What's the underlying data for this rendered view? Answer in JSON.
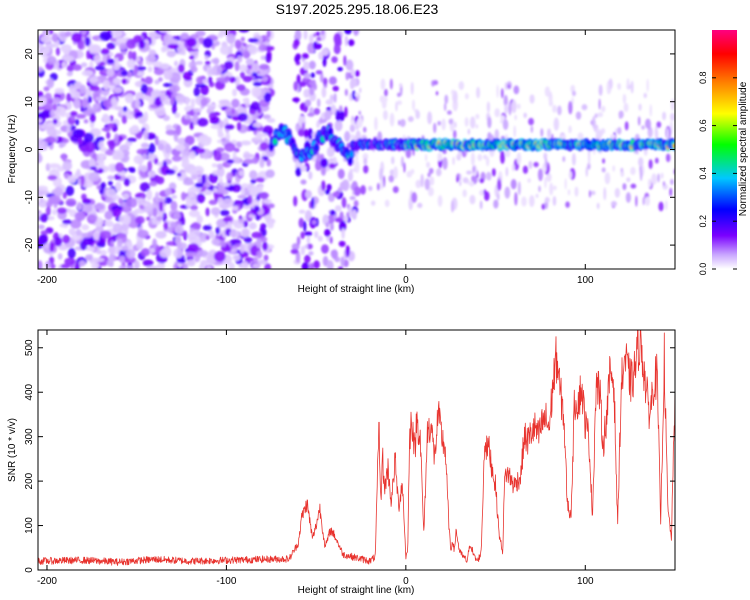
{
  "chart_data": [
    {
      "type": "heatmap",
      "title": "S197.2025.295.18.06.E23",
      "xlabel": "Height of straight line (km)",
      "ylabel": "Frequency (Hz)",
      "xlim": [
        -205,
        150
      ],
      "ylim": [
        -25,
        25
      ],
      "x_ticks": [
        -200,
        -100,
        0,
        100
      ],
      "y_ticks": [
        -20,
        -10,
        0,
        10,
        20
      ],
      "colorbar": {
        "label": "Normalized spectral amplitude",
        "range": [
          0,
          1
        ],
        "ticks": [
          "0.0",
          "0.2",
          "0.4",
          "0.6",
          "0.8"
        ],
        "colors": [
          "#ffffff",
          "#7a00ff",
          "#0000ff",
          "#00c8ff",
          "#00ff00",
          "#ffff00",
          "#ff8000",
          "#ff0000",
          "#ff0080"
        ]
      },
      "features": [
        {
          "name": "noise",
          "x_range": [
            -205,
            -75
          ],
          "freq_range": [
            -25,
            25
          ],
          "amplitude": 0.15
        },
        {
          "name": "narrow-band",
          "x_range": [
            -75,
            150
          ],
          "freq_center": 1,
          "amplitude_peak": 0.95
        }
      ]
    },
    {
      "type": "line",
      "xlabel": "Height of straight line (km)",
      "ylabel": "SNR (10 * v/v)",
      "xlim": [
        -205,
        150
      ],
      "ylim": [
        0,
        540
      ],
      "x_ticks": [
        -200,
        -100,
        0,
        100
      ],
      "y_ticks": [
        0,
        100,
        200,
        300,
        400,
        500
      ],
      "series": [
        {
          "name": "SNR",
          "color": "#e8332e",
          "x": [
            -205,
            -180,
            -160,
            -140,
            -120,
            -100,
            -80,
            -65,
            -60,
            -58,
            -55,
            -52,
            -50,
            -48,
            -45,
            -42,
            -40,
            -35,
            -30,
            -25,
            -20,
            -17,
            -16,
            -15,
            -14,
            -13,
            -12,
            -10,
            -8,
            -6,
            -4,
            -2,
            0,
            1,
            2,
            3,
            4,
            5,
            6,
            8,
            10,
            12,
            14,
            16,
            18,
            20,
            22,
            24,
            25,
            26,
            27,
            28,
            30,
            32,
            34,
            36,
            38,
            40,
            42,
            44,
            45,
            46,
            48,
            50,
            52,
            54,
            55,
            56,
            58,
            60,
            62,
            64,
            66,
            68,
            70,
            72,
            74,
            76,
            78,
            80,
            82,
            84,
            86,
            88,
            90,
            92,
            94,
            96,
            98,
            100,
            102,
            104,
            106,
            108,
            110,
            112,
            114,
            116,
            118,
            120,
            122,
            124,
            126,
            128,
            130,
            132,
            134,
            136,
            138,
            140,
            142,
            144,
            146,
            148,
            150
          ],
          "y": [
            20,
            22,
            18,
            24,
            20,
            22,
            24,
            25,
            60,
            120,
            150,
            70,
            100,
            140,
            50,
            90,
            80,
            35,
            30,
            25,
            20,
            30,
            180,
            330,
            150,
            260,
            180,
            230,
            150,
            250,
            140,
            200,
            30,
            40,
            280,
            340,
            320,
            260,
            340,
            300,
            80,
            310,
            330,
            250,
            350,
            300,
            270,
            100,
            40,
            70,
            40,
            90,
            40,
            30,
            20,
            60,
            30,
            20,
            40,
            300,
            270,
            280,
            230,
            190,
            80,
            40,
            200,
            220,
            210,
            190,
            200,
            210,
            300,
            290,
            310,
            320,
            300,
            330,
            340,
            320,
            420,
            480,
            400,
            350,
            150,
            120,
            380,
            380,
            410,
            330,
            300,
            120,
            420,
            400,
            280,
            350,
            450,
            420,
            100,
            410,
            480,
            440,
            420,
            460,
            520,
            480,
            400,
            350,
            420,
            440,
            110,
            480,
            140,
            70,
            400
          ]
        }
      ]
    }
  ]
}
